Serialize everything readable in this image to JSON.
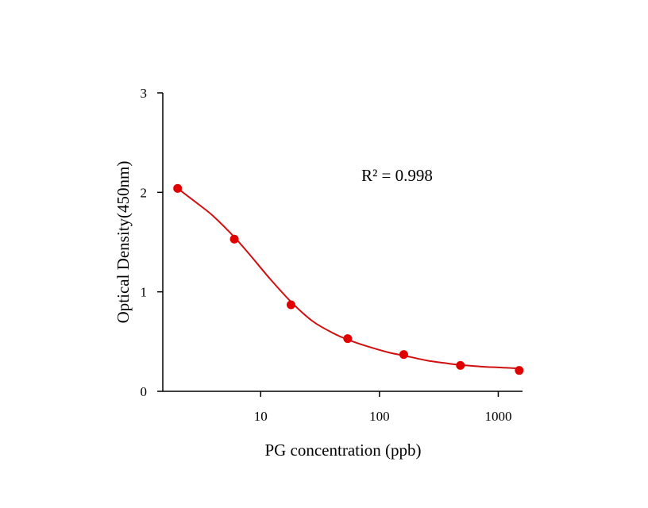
{
  "chart_data": {
    "type": "scatter",
    "xlabel": "PG concentration (ppb)",
    "ylabel": "Optical Density(450nm)",
    "xscale": "log",
    "xlim": [
      1.5,
      1600
    ],
    "ylim": [
      0,
      3
    ],
    "xticks": [
      10,
      100,
      1000
    ],
    "xtick_labels": [
      "10",
      "100",
      "1000"
    ],
    "yticks": [
      0,
      1,
      2,
      3
    ],
    "ytick_labels": [
      "0",
      "1",
      "2",
      "3"
    ],
    "grid": false,
    "annotation": "R² = 0.998",
    "colors": {
      "points": "#e00000",
      "curve": "#d01010",
      "axes": "#000000"
    },
    "series": [
      {
        "x": [
          2,
          6,
          18,
          54,
          160,
          480,
          1500
        ],
        "y": [
          2.04,
          1.53,
          0.87,
          0.53,
          0.37,
          0.26,
          0.21
        ]
      }
    ],
    "fit_curve": {
      "x": [
        2,
        3,
        4,
        6,
        8,
        12,
        18,
        27,
        40,
        54,
        80,
        120,
        160,
        250,
        350,
        480,
        700,
        1000,
        1500
      ],
      "y": [
        2.04,
        1.88,
        1.76,
        1.55,
        1.38,
        1.13,
        0.9,
        0.71,
        0.59,
        0.52,
        0.45,
        0.39,
        0.36,
        0.31,
        0.285,
        0.265,
        0.25,
        0.24,
        0.23
      ]
    }
  }
}
